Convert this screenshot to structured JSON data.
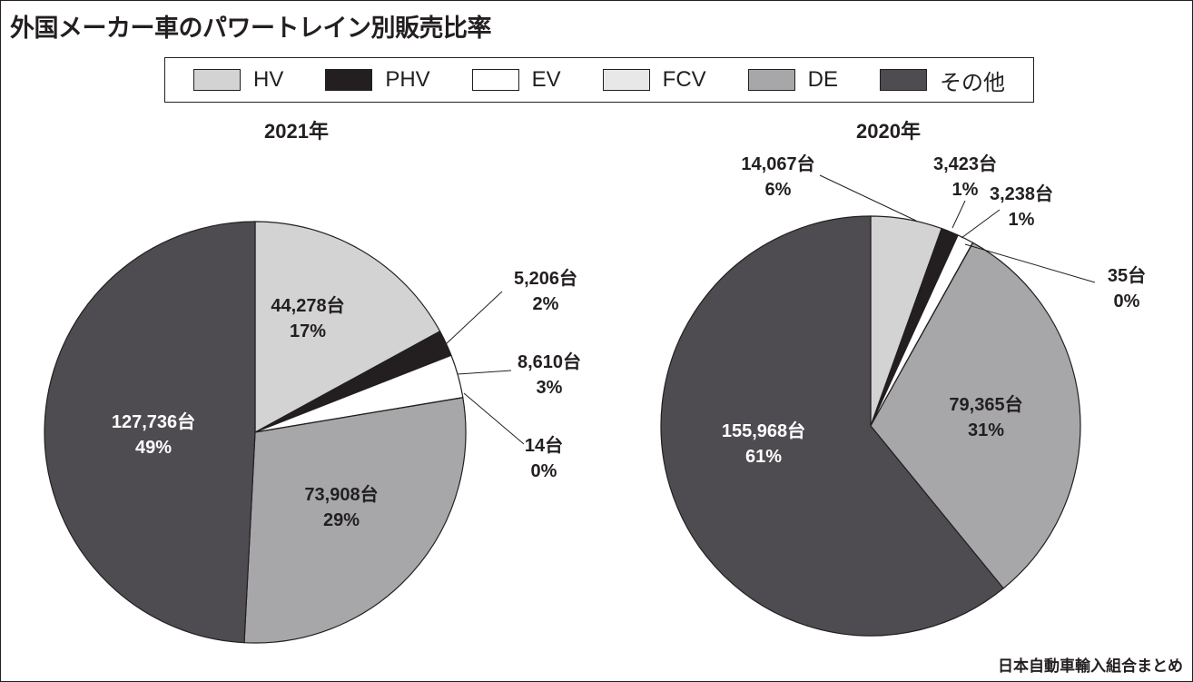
{
  "title": "外国メーカー車のパワートレイン別販売比率",
  "source": "日本自動車輸入組合まとめ",
  "chart_data": [
    {
      "type": "pie",
      "title": "2021年",
      "categories": [
        "HV",
        "PHV",
        "EV",
        "FCV",
        "DE",
        "その他"
      ],
      "colors": [
        "#d3d3d3",
        "#231f20",
        "#ffffff",
        "#e8e8e8",
        "#a7a7a9",
        "#4e4c50"
      ],
      "values": [
        44278,
        5206,
        8610,
        14,
        73908,
        127736
      ],
      "value_labels": [
        "44,278台",
        "5,206台",
        "8,610台",
        "14台",
        "73,908台",
        "127,736台"
      ],
      "percent_labels": [
        "17%",
        "2%",
        "3%",
        "0%",
        "29%",
        "49%"
      ]
    },
    {
      "type": "pie",
      "title": "2020年",
      "categories": [
        "HV",
        "PHV",
        "EV",
        "FCV",
        "DE",
        "その他"
      ],
      "colors": [
        "#d3d3d3",
        "#231f20",
        "#ffffff",
        "#e8e8e8",
        "#a7a7a9",
        "#4e4c50"
      ],
      "values": [
        14067,
        3423,
        3238,
        35,
        79365,
        155968
      ],
      "value_labels": [
        "14,067台",
        "3,423台",
        "3,238台",
        "35台",
        "79,365台",
        "155,968台"
      ],
      "percent_labels": [
        "6%",
        "1%",
        "1%",
        "0%",
        "31%",
        "61%"
      ]
    }
  ],
  "legend": [
    "HV",
    "PHV",
    "EV",
    "FCV",
    "DE",
    "その他"
  ]
}
